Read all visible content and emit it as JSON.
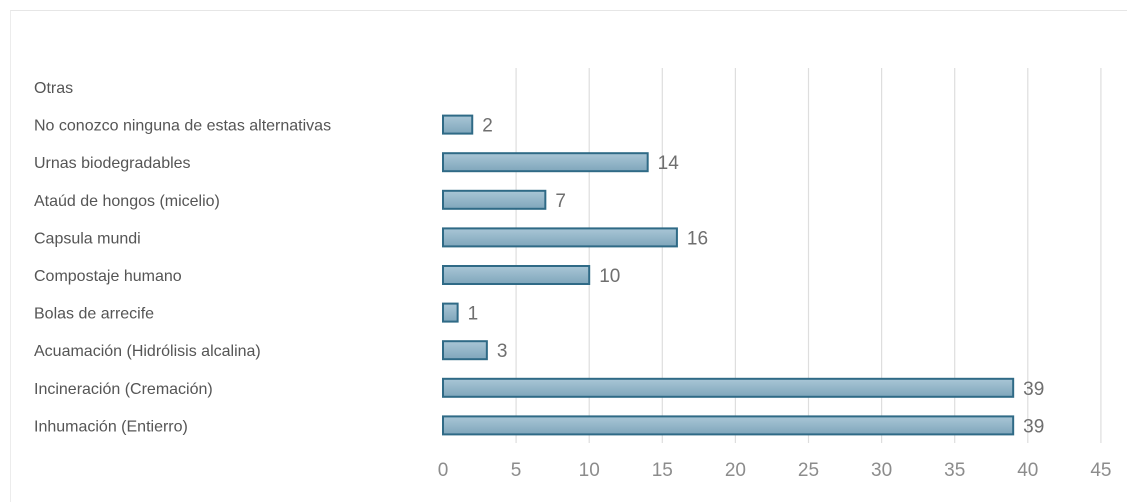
{
  "chart_data": {
    "type": "bar",
    "orientation": "horizontal",
    "categories": [
      "Otras",
      "No conozco ninguna de estas alternativas",
      "Urnas biodegradables",
      "Ataúd de hongos (micelio)",
      "Capsula mundi",
      "Compostaje humano",
      "Bolas de arrecife",
      "Acuamación (Hidrólisis alcalina)",
      "Incineración (Cremación)",
      "Inhumación (Entierro)"
    ],
    "values": [
      0,
      2,
      14,
      7,
      16,
      10,
      1,
      3,
      39,
      39
    ],
    "value_labels": [
      "",
      "2",
      "14",
      "7",
      "16",
      "10",
      "1",
      "3",
      "39",
      "39"
    ],
    "xlim": [
      0,
      45
    ],
    "x_ticks": [
      0,
      5,
      10,
      15,
      20,
      25,
      30,
      35,
      40,
      45
    ],
    "title": "",
    "xlabel": "",
    "ylabel": "",
    "grid": true,
    "colors": {
      "bar_fill_top": "#a9c6d6",
      "bar_fill_bottom": "#7fa6bb",
      "bar_stroke": "#2f6a86",
      "grid": "#dedede"
    }
  }
}
